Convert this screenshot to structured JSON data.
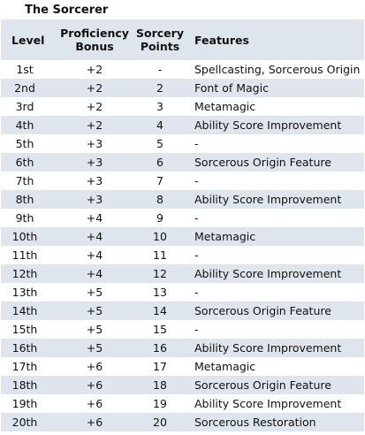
{
  "caption": "The Sorcerer",
  "headers": {
    "level": "Level",
    "proficiency_line1": "Proficiency",
    "proficiency_line2": "Bonus",
    "sorcery_line1": "Sorcery",
    "sorcery_line2": "Points",
    "features": "Features"
  },
  "rows": [
    {
      "level": "1st",
      "prof": "+2",
      "sp": "-",
      "features": "Spellcasting, Sorcerous Origin"
    },
    {
      "level": "2nd",
      "prof": "+2",
      "sp": "2",
      "features": "Font of Magic"
    },
    {
      "level": "3rd",
      "prof": "+2",
      "sp": "3",
      "features": "Metamagic"
    },
    {
      "level": "4th",
      "prof": "+2",
      "sp": "4",
      "features": "Ability Score Improvement"
    },
    {
      "level": "5th",
      "prof": "+3",
      "sp": "5",
      "features": "-"
    },
    {
      "level": "6th",
      "prof": "+3",
      "sp": "6",
      "features": "Sorcerous Origin Feature"
    },
    {
      "level": "7th",
      "prof": "+3",
      "sp": "7",
      "features": "-"
    },
    {
      "level": "8th",
      "prof": "+3",
      "sp": "8",
      "features": "Ability Score Improvement"
    },
    {
      "level": "9th",
      "prof": "+4",
      "sp": "9",
      "features": "-"
    },
    {
      "level": "10th",
      "prof": "+4",
      "sp": "10",
      "features": "Metamagic"
    },
    {
      "level": "11th",
      "prof": "+4",
      "sp": "11",
      "features": "-"
    },
    {
      "level": "12th",
      "prof": "+4",
      "sp": "12",
      "features": "Ability Score Improvement"
    },
    {
      "level": "13th",
      "prof": "+5",
      "sp": "13",
      "features": "-"
    },
    {
      "level": "14th",
      "prof": "+5",
      "sp": "14",
      "features": "Sorcerous Origin Feature"
    },
    {
      "level": "15th",
      "prof": "+5",
      "sp": "15",
      "features": "-"
    },
    {
      "level": "16th",
      "prof": "+5",
      "sp": "16",
      "features": "Ability Score Improvement"
    },
    {
      "level": "17th",
      "prof": "+6",
      "sp": "17",
      "features": "Metamagic"
    },
    {
      "level": "18th",
      "prof": "+6",
      "sp": "18",
      "features": "Sorcerous Origin Feature"
    },
    {
      "level": "19th",
      "prof": "+6",
      "sp": "19",
      "features": "Ability Score Improvement"
    },
    {
      "level": "20th",
      "prof": "+6",
      "sp": "20",
      "features": "Sorcerous Restoration"
    }
  ],
  "colors": {
    "stripe": "#dfe5ec",
    "background": "#ffffff",
    "text": "#111111"
  }
}
